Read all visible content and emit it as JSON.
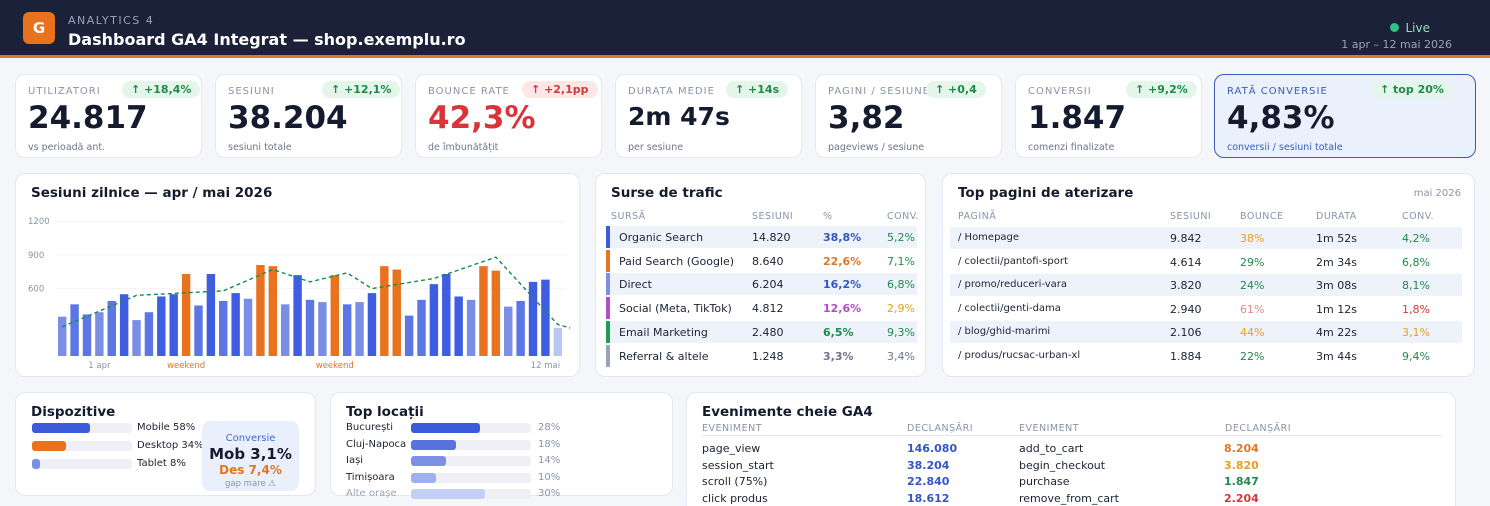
{
  "header": {
    "logo_letter": "G",
    "subtitle": "ANALYTICS 4",
    "title": "Dashboard GA4 Integrat — shop.exemplu.ro",
    "live_label": "Live",
    "period": "1 apr – 12 mai 2026"
  },
  "kpis": [
    {
      "label": "UTILIZATORI",
      "badge": "↑ +18,4%",
      "value": "24.817",
      "note": "vs perioadă ant."
    },
    {
      "label": "SESIUNI",
      "badge": "↑ +12,1%",
      "value": "38.204",
      "note": "sesiuni totale"
    },
    {
      "label": "BOUNCE RATE",
      "badge": "↑ +2,1pp",
      "value": "42,3%",
      "note": "de îmbunătățit"
    },
    {
      "label": "DURATA MEDIE",
      "badge": "↑ +14s",
      "value": "2m 47s",
      "note": "per sesiune"
    },
    {
      "label": "PAGINI / SESIUNE",
      "badge": "↑ +0,4",
      "value": "3,82",
      "note": "pageviews / sesiune"
    },
    {
      "label": "CONVERSII",
      "badge": "↑ +9,2%",
      "value": "1.847",
      "note": "comenzi finalizate"
    },
    {
      "label": "RATĂ CONVERSIE",
      "badge": "↑ top 20%",
      "value": "4,83%",
      "note": "conversii / sesiuni totale"
    }
  ],
  "chart_data": {
    "type": "bar",
    "title": "Sesiuni zilnice — apr / mai 2026",
    "yticks": [
      "1200",
      "900",
      "600"
    ],
    "ylim": [
      0,
      1300
    ],
    "xlabels": [
      "1 apr",
      "weekend",
      "weekend",
      "12 mai"
    ],
    "values": [
      350,
      460,
      370,
      390,
      490,
      550,
      320,
      390,
      530,
      550,
      730,
      450,
      730,
      490,
      560,
      510,
      810,
      800,
      460,
      720,
      500,
      480,
      720,
      460,
      480,
      560,
      800,
      770,
      360,
      500,
      640,
      730,
      530,
      500,
      800,
      760,
      440,
      490,
      660,
      680,
      250
    ],
    "weekend_indices": [
      10,
      16,
      17,
      22,
      26,
      27,
      34,
      35
    ],
    "trend": [
      [
        0,
        260
      ],
      [
        6,
        540
      ],
      [
        13,
        580
      ],
      [
        17,
        770
      ],
      [
        20,
        660
      ],
      [
        23,
        740
      ],
      [
        25,
        600
      ],
      [
        30,
        690
      ],
      [
        35,
        880
      ],
      [
        40,
        280
      ],
      [
        41,
        250
      ]
    ]
  },
  "traffic": {
    "title": "Surse de trafic",
    "headers": [
      "SURSĂ",
      "SESIUNI",
      "%",
      "CONV."
    ],
    "rows": [
      {
        "name": "Organic Search",
        "sessions": "14.820",
        "pct": "38,8%",
        "conv": "5,2%",
        "color": "#3b5bdb",
        "pct_color": "#3456c5",
        "conv_color": "#1f8a4c"
      },
      {
        "name": "Paid Search (Google)",
        "sessions": "8.640",
        "pct": "22,6%",
        "conv": "7,1%",
        "color": "#e8721e",
        "pct_color": "#e07722",
        "conv_color": "#1f8a4c"
      },
      {
        "name": "Direct",
        "sessions": "6.204",
        "pct": "16,2%",
        "conv": "6,8%",
        "color": "#7c8fe6",
        "pct_color": "#3456c5",
        "conv_color": "#1f8a4c"
      },
      {
        "name": "Social (Meta, TikTok)",
        "sessions": "4.812",
        "pct": "12,6%",
        "conv": "2,9%",
        "color": "#b54acb",
        "pct_color": "#b54acb",
        "conv_color": "#e8a020"
      },
      {
        "name": "Email Marketing",
        "sessions": "2.480",
        "pct": "6,5%",
        "conv": "9,3%",
        "color": "#1f9d55",
        "pct_color": "#1f8a4c",
        "conv_color": "#1f8a4c"
      },
      {
        "name": "Referral & altele",
        "sessions": "1.248",
        "pct": "3,3%",
        "conv": "3,4%",
        "color": "#9aa3b8",
        "pct_color": "#6d7588",
        "conv_color": "#6d7588"
      }
    ]
  },
  "landing": {
    "title": "Top pagini de aterizare",
    "period": "mai 2026",
    "headers": [
      "PAGINĂ",
      "SESIUNI",
      "BOUNCE",
      "DURATA",
      "CONV."
    ],
    "rows": [
      {
        "page": "/   Homepage",
        "sessions": "9.842",
        "bounce": "38%",
        "duration": "1m 52s",
        "conv": "4,2%",
        "bounce_color": "#e8a020",
        "conv_color": "#1f8a4c"
      },
      {
        "page": "/   colectii/pantofi-sport",
        "sessions": "4.614",
        "bounce": "29%",
        "duration": "2m 34s",
        "conv": "6,8%",
        "bounce_color": "#1f8a4c",
        "conv_color": "#1f8a4c"
      },
      {
        "page": "/   promo/reduceri-vara",
        "sessions": "3.820",
        "bounce": "24%",
        "duration": "3m 08s",
        "conv": "8,1%",
        "bounce_color": "#1f8a4c",
        "conv_color": "#1f8a4c"
      },
      {
        "page": "/   colectii/genti-dama",
        "sessions": "2.940",
        "bounce": "61%",
        "duration": "1m 12s",
        "conv": "1,8%",
        "bounce_color": "#e08a8a",
        "conv_color": "#d23a3a"
      },
      {
        "page": "/   blog/ghid-marimi",
        "sessions": "2.106",
        "bounce": "44%",
        "duration": "4m 22s",
        "conv": "3,1%",
        "bounce_color": "#e8a020",
        "conv_color": "#e8a020"
      },
      {
        "page": "/   produs/rucsac-urban-xl",
        "sessions": "1.884",
        "bounce": "22%",
        "duration": "3m 44s",
        "conv": "9,4%",
        "bounce_color": "#1f8a4c",
        "conv_color": "#1f8a4c"
      }
    ]
  },
  "devices": {
    "title": "Dispozitive",
    "rows": [
      {
        "label": "Mobile 58%",
        "pct": 58,
        "color": "#3b5bdb"
      },
      {
        "label": "Desktop 34%",
        "pct": 34,
        "color": "#e8721e"
      },
      {
        "label": "Tablet 8%",
        "pct": 8,
        "color": "#7c8fe6"
      }
    ],
    "conv_box": {
      "title": "Conversie",
      "mob": "Mob 3,1%",
      "des": "Des 7,4%",
      "note": "gap mare ⚠"
    }
  },
  "locations": {
    "title": "Top locații",
    "rows": [
      {
        "name": "București",
        "pct_label": "28%",
        "pct": 28,
        "color": "#3b5bdb"
      },
      {
        "name": "Cluj-Napoca",
        "pct_label": "18%",
        "pct": 18,
        "color": "#5a72e0"
      },
      {
        "name": "Iași",
        "pct_label": "14%",
        "pct": 14,
        "color": "#7c8fe6"
      },
      {
        "name": "Timișoara",
        "pct_label": "10%",
        "pct": 10,
        "color": "#9fb0ef"
      },
      {
        "name": "Alte orașe",
        "pct_label": "30%",
        "pct": 30,
        "color": "#c4cff5"
      }
    ]
  },
  "events": {
    "title": "Evenimente cheie GA4",
    "headers": [
      "EVENIMENT",
      "DECLANȘĂRI",
      "EVENIMENT",
      "DECLANȘĂRI"
    ],
    "left": [
      {
        "name": "page_view",
        "count": "146.080",
        "color": "#3456c5"
      },
      {
        "name": "session_start",
        "count": "38.204",
        "color": "#3456c5"
      },
      {
        "name": "scroll (75%)",
        "count": "22.840",
        "color": "#3456c5"
      },
      {
        "name": "click produs",
        "count": "18.612",
        "color": "#3456c5"
      }
    ],
    "right": [
      {
        "name": "add_to_cart",
        "count": "8.204",
        "color": "#e07722"
      },
      {
        "name": "begin_checkout",
        "count": "3.820",
        "color": "#e8a020"
      },
      {
        "name": "purchase",
        "count": "1.847",
        "color": "#1f8a4c"
      },
      {
        "name": "remove_from_cart",
        "count": "2.204",
        "color": "#d23a3a"
      }
    ]
  }
}
